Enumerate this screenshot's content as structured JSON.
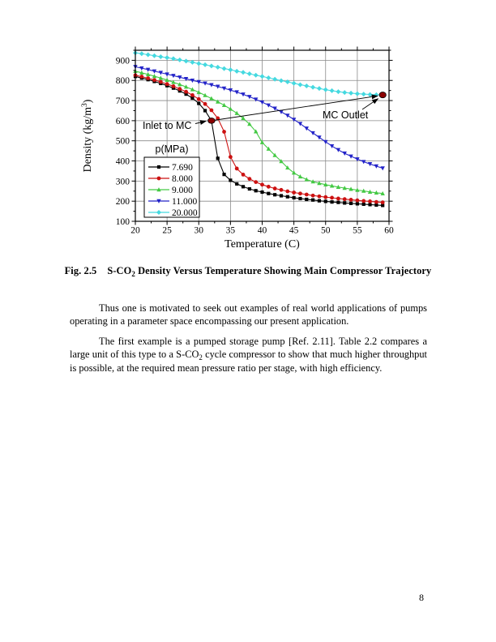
{
  "page": {
    "number": "8"
  },
  "figure": {
    "caption": {
      "fig_label": "Fig. 2.5",
      "title_pre": "S-CO",
      "title_sub": "2",
      "title_post": " Density Versus Temperature Showing Main Compressor Trajectory"
    }
  },
  "paragraphs": {
    "p1": "Thus one is motivated to seek out examples of real world applications of pumps operating in a parameter space encompassing our present application.",
    "p2_pre": "The first example is a pumped storage pump [Ref. 2.11].  Table 2.2 compares a large unit of this type to a S-CO",
    "p2_sub": "2",
    "p2_post": " cycle compressor to show that much higher throughput is possible, at the required mean pressure ratio per stage, with high efficiency."
  },
  "chart_data": {
    "type": "line",
    "xlabel": "Temperature (C)",
    "ylabel_parts": [
      "Density (kg/m",
      "3",
      ")"
    ],
    "xlim": [
      20,
      60
    ],
    "ylim": [
      100,
      950
    ],
    "xticks": [
      20,
      25,
      30,
      35,
      40,
      45,
      50,
      55,
      60
    ],
    "yticks": [
      100,
      200,
      300,
      400,
      500,
      600,
      700,
      800,
      900
    ],
    "x_minor_step": 2.5,
    "y_minor_step": 50,
    "grid": true,
    "gridline_color": "#8a8a8a",
    "legend": {
      "title": "p(MPa)",
      "position": "left-center"
    },
    "x": [
      20,
      21,
      22,
      23,
      24,
      25,
      26,
      27,
      28,
      29,
      30,
      31,
      32,
      33,
      34,
      35,
      36,
      37,
      38,
      39,
      40,
      41,
      42,
      43,
      44,
      45,
      46,
      47,
      48,
      49,
      50,
      51,
      52,
      53,
      54,
      55,
      56,
      57,
      58,
      59
    ],
    "series": [
      {
        "name": "7.690",
        "color": "#000000",
        "marker": "square",
        "values": [
          820,
          812,
          804,
          795,
          785,
          774,
          762,
          748,
          732,
          712,
          686,
          650,
          600,
          413,
          333,
          304,
          286,
          272,
          261,
          252,
          245,
          238,
          232,
          227,
          222,
          217,
          213,
          209,
          206,
          202,
          199,
          196,
          194,
          191,
          189,
          187,
          185,
          183,
          181,
          179
        ]
      },
      {
        "name": "8.000",
        "color": "#cc1111",
        "marker": "circle",
        "values": [
          826,
          819,
          811,
          802,
          793,
          782,
          771,
          758,
          744,
          727,
          707,
          683,
          652,
          612,
          545,
          420,
          362,
          332,
          311,
          295,
          282,
          272,
          263,
          256,
          249,
          243,
          238,
          233,
          228,
          224,
          220,
          217,
          213,
          210,
          207,
          204,
          201,
          199,
          196,
          194
        ]
      },
      {
        "name": "9.000",
        "color": "#44c944",
        "marker": "triangle-up",
        "values": [
          846,
          838,
          830,
          821,
          812,
          802,
          791,
          780,
          768,
          755,
          741,
          726,
          710,
          694,
          677,
          658,
          637,
          612,
          583,
          546,
          492,
          460,
          428,
          398,
          366,
          341,
          322,
          308,
          297,
          289,
          282,
          276,
          270,
          265,
          260,
          255,
          251,
          246,
          242,
          238
        ]
      },
      {
        "name": "11.000",
        "color": "#2323c8",
        "marker": "triangle-down",
        "values": [
          868,
          861,
          854,
          846,
          839,
          831,
          824,
          816,
          808,
          800,
          793,
          786,
          778,
          770,
          761,
          752,
          742,
          731,
          719,
          706,
          692,
          677,
          661,
          644,
          626,
          606,
          585,
          562,
          539,
          517,
          495,
          474,
          455,
          438,
          423,
          409,
          396,
          385,
          374,
          364
        ]
      },
      {
        "name": "20.000",
        "color": "#45d9e0",
        "marker": "diamond",
        "values": [
          937,
          933,
          928,
          923,
          918,
          913,
          908,
          902,
          896,
          890,
          884,
          878,
          872,
          866,
          859,
          853,
          846,
          840,
          833,
          826,
          820,
          813,
          806,
          799,
          793,
          786,
          779,
          773,
          766,
          760,
          754,
          749,
          744,
          740,
          737,
          734,
          732,
          730,
          729,
          728
        ]
      }
    ],
    "annotations": {
      "inlet": {
        "label": "Inlet to MC",
        "point": [
          32,
          600
        ]
      },
      "outlet": {
        "label": "MC Outlet",
        "point": [
          59,
          728
        ]
      },
      "trajectory": {
        "from": [
          32,
          600
        ],
        "to": [
          59,
          728
        ]
      },
      "point_color": "#8b0000"
    }
  }
}
